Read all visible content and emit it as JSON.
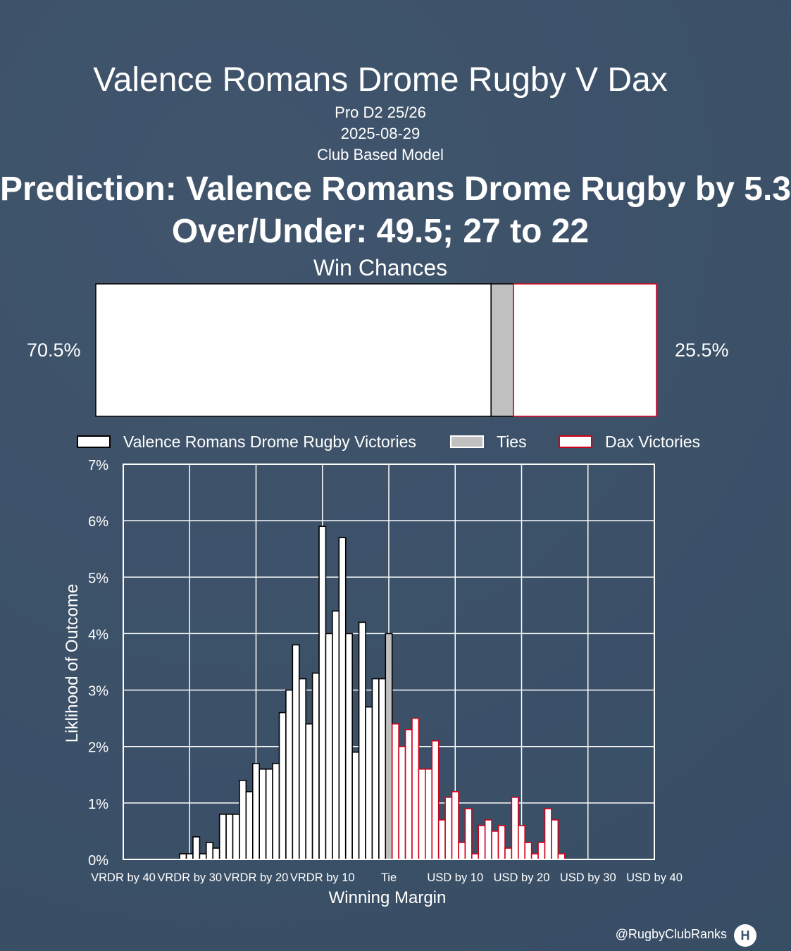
{
  "header": {
    "title": "Valence Romans Drome Rugby V Dax",
    "subtitle1": "Pro D2 25/26",
    "subtitle2": "2025-08-29",
    "subtitle3": "Club Based Model",
    "prediction": "Prediction: Valence Romans Drome Rugby by 5.3",
    "over_under": "Over/Under: 49.5; 27 to 22"
  },
  "win_chances": {
    "title": "Win Chances",
    "home_pct_label": "70.5%",
    "away_pct_label": "25.5%",
    "home": 70.5,
    "tie": 4.0,
    "away": 25.5
  },
  "legend": {
    "home": "Valence Romans Drome Rugby Victories",
    "tie": "Ties",
    "away": "Dax Victories"
  },
  "colors": {
    "background": "#3a5068",
    "home_fill": "#ffffff",
    "home_edge": "#000000",
    "tie_fill": "#c0c0c0",
    "away_fill": "#ffffff",
    "away_edge": "#d0021b"
  },
  "chart_data": {
    "type": "bar",
    "xlabel": "Winning Margin",
    "ylabel": "Liklihood of Outcome",
    "xlim": [
      -40,
      40
    ],
    "ylim": [
      0,
      7
    ],
    "x_ticks": [
      {
        "value": -40,
        "label": "VRDR by 40"
      },
      {
        "value": -30,
        "label": "VRDR by 30"
      },
      {
        "value": -20,
        "label": "VRDR by 20"
      },
      {
        "value": -10,
        "label": "VRDR by 10"
      },
      {
        "value": 0,
        "label": "Tie"
      },
      {
        "value": 10,
        "label": "USD by 10"
      },
      {
        "value": 20,
        "label": "USD by 20"
      },
      {
        "value": 30,
        "label": "USD by 30"
      },
      {
        "value": 40,
        "label": "USD by 40"
      }
    ],
    "y_ticks": [
      {
        "value": 0,
        "label": "0%"
      },
      {
        "value": 1,
        "label": "1%"
      },
      {
        "value": 2,
        "label": "2%"
      },
      {
        "value": 3,
        "label": "3%"
      },
      {
        "value": 4,
        "label": "4%"
      },
      {
        "value": 5,
        "label": "5%"
      },
      {
        "value": 6,
        "label": "6%"
      },
      {
        "value": 7,
        "label": "7%"
      }
    ],
    "grid": true,
    "series": [
      {
        "name": "Valence Romans Drome Rugby Victories",
        "x": [
          -31,
          -30,
          -29,
          -28,
          -27,
          -26,
          -25,
          -24,
          -23,
          -22,
          -21,
          -20,
          -19,
          -18,
          -17,
          -16,
          -15,
          -14,
          -13,
          -12,
          -11,
          -10,
          -9,
          -8,
          -7,
          -6,
          -5,
          -4,
          -3,
          -2,
          -1
        ],
        "values": [
          0.1,
          0.1,
          0.4,
          0.1,
          0.3,
          0.2,
          0.8,
          0.8,
          0.8,
          1.4,
          1.2,
          1.7,
          1.6,
          1.6,
          1.7,
          2.6,
          3.0,
          3.8,
          3.2,
          2.4,
          3.3,
          5.9,
          4.0,
          4.4,
          5.7,
          4.0,
          1.9,
          4.2,
          2.7,
          3.2,
          3.2
        ]
      },
      {
        "name": "Ties",
        "x": [
          0
        ],
        "values": [
          4.0
        ]
      },
      {
        "name": "Dax Victories",
        "x": [
          1,
          2,
          3,
          4,
          5,
          6,
          7,
          8,
          9,
          10,
          11,
          12,
          13,
          14,
          15,
          16,
          17,
          18,
          19,
          20,
          21,
          22,
          23,
          24,
          25,
          26
        ],
        "values": [
          2.4,
          2.0,
          2.3,
          2.5,
          1.6,
          1.6,
          2.1,
          0.7,
          1.1,
          1.2,
          0.3,
          0.9,
          0.1,
          0.6,
          0.7,
          0.5,
          0.6,
          0.2,
          1.1,
          0.6,
          0.3,
          0.1,
          0.3,
          0.9,
          0.7,
          0.1
        ]
      }
    ]
  },
  "credit": "@RugbyClubRanks",
  "logo_text": "H",
  "logo_icon": "rugby-posts-icon"
}
